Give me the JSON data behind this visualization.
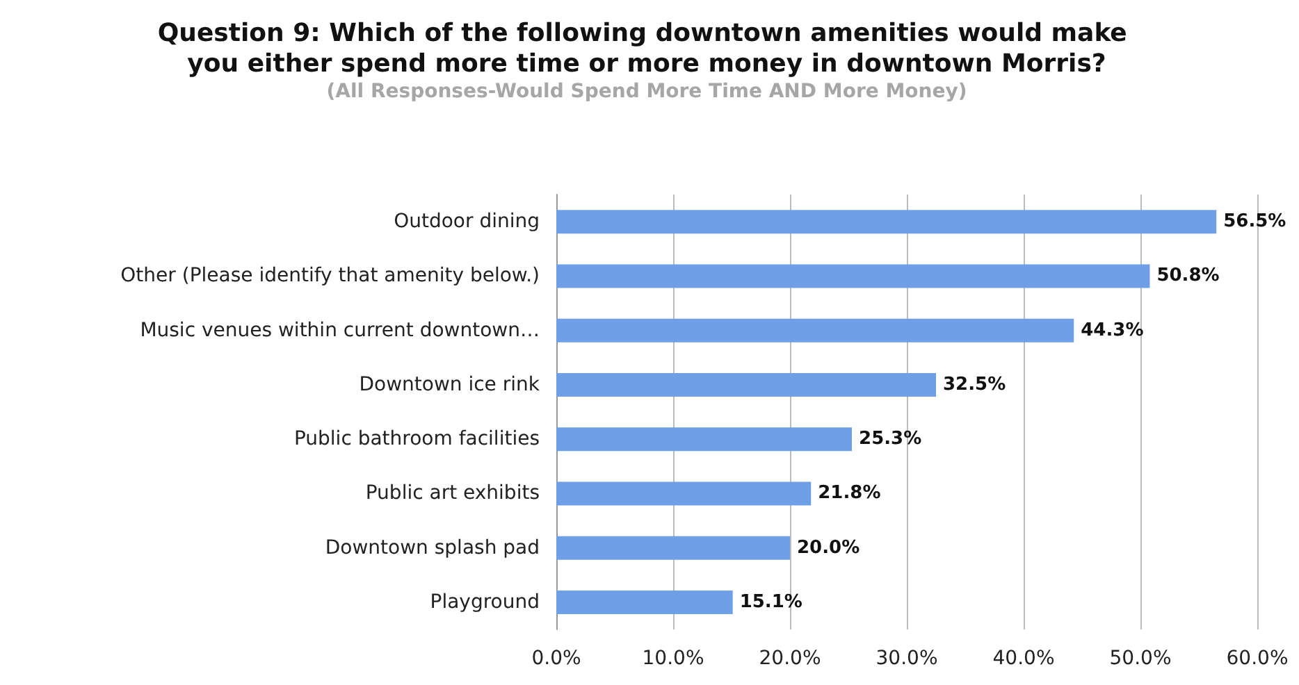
{
  "chart_data": {
    "type": "bar",
    "orientation": "horizontal",
    "title": "Question 9: Which of the following downtown amenities would make you either spend more time or more money in downtown Morris?",
    "subtitle": "(All Responses-Would Spend More Time AND More Money)",
    "categories": [
      "Outdoor dining",
      "Other (Please identify that amenity below.)",
      "Music venues within current downtown…",
      "Downtown ice rink",
      "Public bathroom facilities",
      "Public art exhibits",
      "Downtown splash pad",
      "Playground"
    ],
    "values": [
      56.5,
      50.8,
      44.3,
      32.5,
      25.3,
      21.8,
      20.0,
      15.1
    ],
    "value_labels": [
      "56.5%",
      "50.8%",
      "44.3%",
      "32.5%",
      "25.3%",
      "21.8%",
      "20.0%",
      "15.1%"
    ],
    "color": "#6f9fe6",
    "xlim": [
      0,
      60
    ],
    "xticks": [
      {
        "value": 0,
        "label": "0.0%"
      },
      {
        "value": 10,
        "label": "10.0%"
      },
      {
        "value": 20,
        "label": "20.0%"
      },
      {
        "value": 30,
        "label": "30.0%"
      },
      {
        "value": 40,
        "label": "40.0%"
      },
      {
        "value": 50,
        "label": "50.0%"
      },
      {
        "value": 60,
        "label": "60.0%"
      }
    ],
    "grid": "x"
  }
}
